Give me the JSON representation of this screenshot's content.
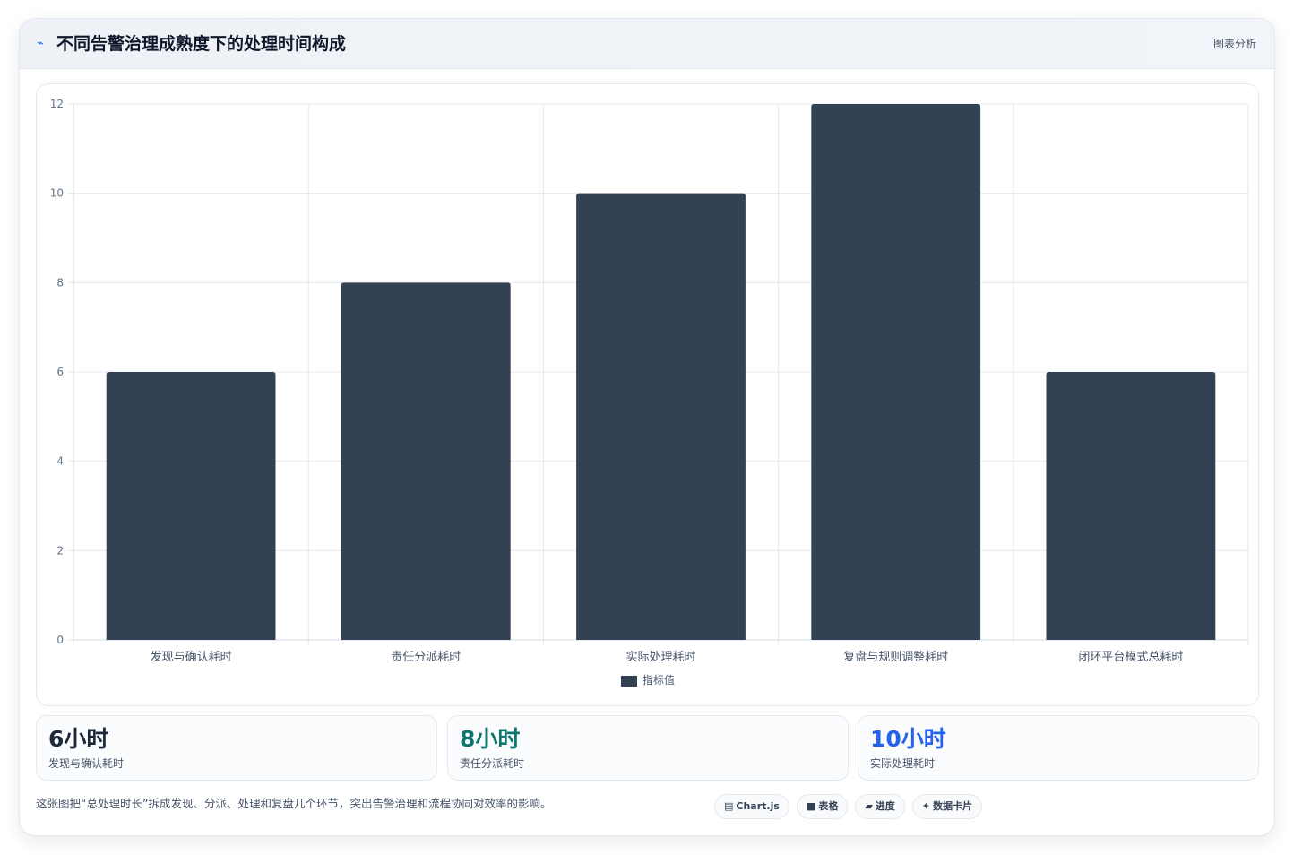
{
  "header": {
    "icon": "chart-spark-icon",
    "title": "不同告警治理成熟度下的处理时间构成",
    "tag": "图表分析"
  },
  "chart_data": {
    "type": "bar",
    "categories": [
      "发现与确认耗时",
      "责任分派耗时",
      "实际处理耗时",
      "复盘与规则调整耗时",
      "闭环平台模式总耗时"
    ],
    "series": [
      {
        "name": "指标值",
        "values": [
          6,
          8,
          10,
          12,
          6
        ]
      }
    ],
    "ylim": [
      0,
      12
    ],
    "yticks": [
      0,
      2,
      4,
      6,
      8,
      10,
      12
    ],
    "grid": true,
    "legend": "bottom",
    "color": "#334155"
  },
  "stats": [
    {
      "value": "6小时",
      "label": "发现与确认耗时",
      "color": "#1e293b"
    },
    {
      "value": "8小时",
      "label": "责任分派耗时",
      "color": "#0f766e"
    },
    {
      "value": "10小时",
      "label": "实际处理耗时",
      "color": "#2563eb"
    }
  ],
  "footnote": "这张图把“总处理时长”拆成发现、分派、处理和复盘几个环节，突出告警治理和流程协同对效率的影响。",
  "chips": [
    {
      "icon": "chart-icon",
      "glyph": "▤",
      "label": "Chart.js"
    },
    {
      "icon": "table-icon",
      "glyph": "■",
      "label": "表格"
    },
    {
      "icon": "progress-icon",
      "glyph": "▰",
      "label": "进度"
    },
    {
      "icon": "card-icon",
      "glyph": "✦",
      "label": "数据卡片"
    }
  ]
}
